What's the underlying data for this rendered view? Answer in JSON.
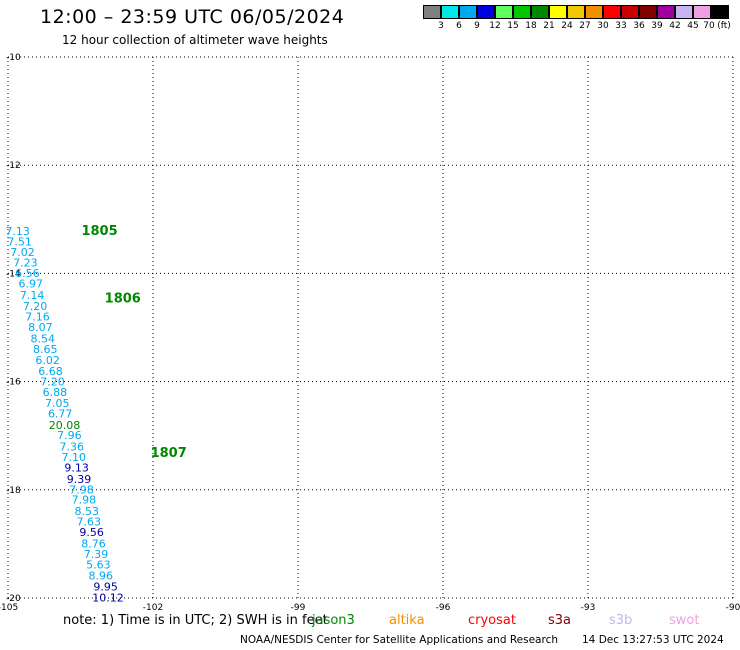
{
  "header": {
    "title": "12:00 – 23:59 UTC 06/05/2024",
    "subtitle": "12 hour collection of altimeter wave heights"
  },
  "legend": {
    "unit": "(ft)",
    "entries": [
      {
        "color": "#808080",
        "label": "3"
      },
      {
        "color": "#00e8e8",
        "label": "6"
      },
      {
        "color": "#00a8f0",
        "label": "9"
      },
      {
        "color": "#0000e0",
        "label": "12"
      },
      {
        "color": "#60ff60",
        "label": "15"
      },
      {
        "color": "#00c800",
        "label": "18"
      },
      {
        "color": "#008800",
        "label": "21"
      },
      {
        "color": "#ffff00",
        "label": "24"
      },
      {
        "color": "#f0c800",
        "label": "27"
      },
      {
        "color": "#f09000",
        "label": "30"
      },
      {
        "color": "#ff0000",
        "label": "33"
      },
      {
        "color": "#c80000",
        "label": "36"
      },
      {
        "color": "#800000",
        "label": "39"
      },
      {
        "color": "#a000a0",
        "label": "42"
      },
      {
        "color": "#c8b4f0",
        "label": "45"
      },
      {
        "color": "#f0a0e0",
        "label": "70"
      },
      {
        "color": "#000000",
        "label": ""
      }
    ]
  },
  "map": {
    "lat_range": [
      -20,
      -10
    ],
    "lon_range": [
      -105,
      -90
    ],
    "lat_ticks": [
      "-10",
      "-12",
      "-14",
      "-16",
      "-18",
      "-20"
    ],
    "lon_ticks": [
      "-105",
      "-102",
      "-99",
      "-96",
      "-93",
      "-90"
    ],
    "grid": "dotted",
    "passes": [
      {
        "label": "1805",
        "lon": -103.48,
        "lat": -13.2,
        "color": "#008800"
      },
      {
        "label": "1806",
        "lon": -103.0,
        "lat": -14.45,
        "color": "#008800"
      },
      {
        "label": "1807",
        "lon": -102.05,
        "lat": -17.3,
        "color": "#008800"
      }
    ],
    "observations": [
      {
        "text": "7.13",
        "lon": -104.8,
        "lat": -13.22,
        "color": "#00a8f0"
      },
      {
        "text": "7.51",
        "lon": -104.76,
        "lat": -13.41,
        "color": "#00a8f0"
      },
      {
        "text": "7.02",
        "lon": -104.7,
        "lat": -13.6,
        "color": "#00a8f0"
      },
      {
        "text": "7.23",
        "lon": -104.64,
        "lat": -13.8,
        "color": "#00a8f0"
      },
      {
        "text": "6.56",
        "lon": -104.6,
        "lat": -13.99,
        "color": "#00a8f0"
      },
      {
        "text": "6.97",
        "lon": -104.53,
        "lat": -14.19,
        "color": "#00a8f0"
      },
      {
        "text": "7.14",
        "lon": -104.5,
        "lat": -14.4,
        "color": "#00a8f0"
      },
      {
        "text": "7.20",
        "lon": -104.44,
        "lat": -14.6,
        "color": "#00a8f0"
      },
      {
        "text": "7.16",
        "lon": -104.39,
        "lat": -14.8,
        "color": "#00a8f0"
      },
      {
        "text": "8.07",
        "lon": -104.33,
        "lat": -14.99,
        "color": "#00a8f0"
      },
      {
        "text": "8.54",
        "lon": -104.28,
        "lat": -15.2,
        "color": "#00a8f0"
      },
      {
        "text": "8.65",
        "lon": -104.23,
        "lat": -15.4,
        "color": "#00a8f0"
      },
      {
        "text": "6.02",
        "lon": -104.18,
        "lat": -15.6,
        "color": "#00a8f0"
      },
      {
        "text": "6.68",
        "lon": -104.12,
        "lat": -15.8,
        "color": "#00a8f0"
      },
      {
        "text": "7.20",
        "lon": -104.08,
        "lat": -16.0,
        "color": "#00a8f0"
      },
      {
        "text": "6.88",
        "lon": -104.03,
        "lat": -16.19,
        "color": "#00a8f0"
      },
      {
        "text": "7.05",
        "lon": -103.98,
        "lat": -16.4,
        "color": "#00a8f0"
      },
      {
        "text": "6.77",
        "lon": -103.92,
        "lat": -16.59,
        "color": "#00a8f0"
      },
      {
        "text": "20.08",
        "lon": -103.83,
        "lat": -16.8,
        "color": "#008800"
      },
      {
        "text": "7.96",
        "lon": -103.73,
        "lat": -16.99,
        "color": "#00a8f0"
      },
      {
        "text": "7.36",
        "lon": -103.68,
        "lat": -17.2,
        "color": "#00a8f0"
      },
      {
        "text": "7.10",
        "lon": -103.64,
        "lat": -17.39,
        "color": "#00a8f0"
      },
      {
        "text": "9.13",
        "lon": -103.58,
        "lat": -17.59,
        "color": "#0000a0"
      },
      {
        "text": "9.39",
        "lon": -103.53,
        "lat": -17.8,
        "color": "#0000a0"
      },
      {
        "text": "7.98",
        "lon": -103.48,
        "lat": -17.99,
        "color": "#00a8f0"
      },
      {
        "text": "7.98",
        "lon": -103.43,
        "lat": -18.18,
        "color": "#00a8f0"
      },
      {
        "text": "8.53",
        "lon": -103.37,
        "lat": -18.39,
        "color": "#00a8f0"
      },
      {
        "text": "7.63",
        "lon": -103.33,
        "lat": -18.59,
        "color": "#00a8f0"
      },
      {
        "text": "9.56",
        "lon": -103.27,
        "lat": -18.78,
        "color": "#0000a0"
      },
      {
        "text": "8.76",
        "lon": -103.23,
        "lat": -18.99,
        "color": "#00a8f0"
      },
      {
        "text": "7.39",
        "lon": -103.18,
        "lat": -19.19,
        "color": "#00a8f0"
      },
      {
        "text": "5.63",
        "lon": -103.13,
        "lat": -19.38,
        "color": "#00a8f0"
      },
      {
        "text": "8.96",
        "lon": -103.08,
        "lat": -19.58,
        "color": "#00a8f0"
      },
      {
        "text": "9.95",
        "lon": -102.98,
        "lat": -19.79,
        "color": "#0000a0"
      },
      {
        "text": "10.12",
        "lon": -102.93,
        "lat": -19.99,
        "color": "#0000a0"
      }
    ]
  },
  "footer": {
    "note": "note:  1) Time is in UTC;  2) SWH is in feet",
    "satellites": [
      {
        "label": "jason3",
        "color": "#008800"
      },
      {
        "label": "altika",
        "color": "#f09000"
      },
      {
        "label": "cryosat",
        "color": "#ff0000"
      },
      {
        "label": "s3a",
        "color": "#800000"
      },
      {
        "label": "s3b",
        "color": "#c8b4f0"
      },
      {
        "label": "swot",
        "color": "#f0a0e0"
      }
    ],
    "credit": "NOAA/NESDIS Center for Satellite Applications and Research",
    "timestamp": "14 Dec 13:27:53 UTC 2024"
  }
}
